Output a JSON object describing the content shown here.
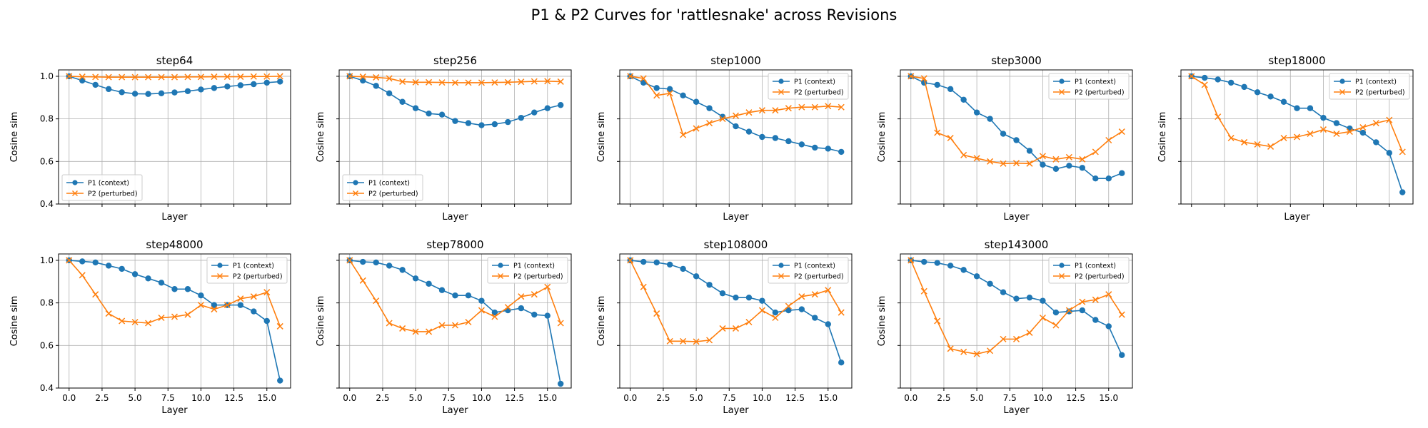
{
  "suptitle": "P1 & P2 Curves for 'rattlesnake' across Revisions",
  "chart_data": {
    "type": "line",
    "layout": "2x5 grid of subplots, shared x and y axes",
    "suptitle": "P1 & P2 Curves for 'rattlesnake' across Revisions",
    "xlabel": "Layer",
    "ylabel": "Cosine sim",
    "xlim": [
      -0.8,
      16.8
    ],
    "ylim": [
      0.4,
      1.03
    ],
    "xticks": [
      0.0,
      2.5,
      5.0,
      7.5,
      10.0,
      12.5,
      15.0
    ],
    "xtick_labels": [
      "0.0",
      "2.5",
      "5.0",
      "7.5",
      "10.0",
      "12.5",
      "15.0"
    ],
    "yticks": [
      0.4,
      0.6,
      0.8,
      1.0
    ],
    "ytick_labels": [
      "0.4",
      "0.6",
      "0.8",
      "1.0"
    ],
    "grid": true,
    "x": [
      0,
      1,
      2,
      3,
      4,
      5,
      6,
      7,
      8,
      9,
      10,
      11,
      12,
      13,
      14,
      15,
      16
    ],
    "series_styles": [
      {
        "name": "P1 (context)",
        "color": "#1f77b4",
        "marker": "circle"
      },
      {
        "name": "P2 (perturbed)",
        "color": "#ff7f0e",
        "marker": "x"
      }
    ],
    "panels": [
      {
        "title": "step64",
        "legend": "lower-left",
        "show_x_ticklabels": false,
        "show_y_ticklabels": true,
        "series": [
          {
            "name": "P1 (context)",
            "values": [
              1.0,
              0.98,
              0.96,
              0.94,
              0.925,
              0.918,
              0.917,
              0.92,
              0.924,
              0.93,
              0.938,
              0.945,
              0.952,
              0.958,
              0.963,
              0.97,
              0.975
            ]
          },
          {
            "name": "P2 (perturbed)",
            "values": [
              1.0,
              0.998,
              0.997,
              0.996,
              0.996,
              0.996,
              0.996,
              0.996,
              0.996,
              0.997,
              0.997,
              0.998,
              0.998,
              0.998,
              0.999,
              0.999,
              1.0
            ]
          }
        ]
      },
      {
        "title": "step256",
        "legend": "lower-left",
        "show_x_ticklabels": false,
        "show_y_ticklabels": false,
        "series": [
          {
            "name": "P1 (context)",
            "values": [
              1.0,
              0.98,
              0.955,
              0.92,
              0.88,
              0.85,
              0.825,
              0.82,
              0.79,
              0.78,
              0.77,
              0.775,
              0.785,
              0.805,
              0.83,
              0.85,
              0.865
            ]
          },
          {
            "name": "P2 (perturbed)",
            "values": [
              1.0,
              0.998,
              0.995,
              0.99,
              0.975,
              0.972,
              0.972,
              0.971,
              0.97,
              0.97,
              0.97,
              0.971,
              0.972,
              0.974,
              0.976,
              0.977,
              0.975
            ]
          }
        ]
      },
      {
        "title": "step1000",
        "legend": "upper-right",
        "show_x_ticklabels": false,
        "show_y_ticklabels": false,
        "series": [
          {
            "name": "P1 (context)",
            "values": [
              1.0,
              0.97,
              0.945,
              0.94,
              0.91,
              0.88,
              0.85,
              0.81,
              0.765,
              0.74,
              0.715,
              0.71,
              0.695,
              0.68,
              0.665,
              0.66,
              0.645
            ]
          },
          {
            "name": "P2 (perturbed)",
            "values": [
              1.0,
              0.99,
              0.91,
              0.92,
              0.725,
              0.755,
              0.78,
              0.8,
              0.815,
              0.83,
              0.84,
              0.84,
              0.85,
              0.855,
              0.855,
              0.86,
              0.855
            ]
          }
        ]
      },
      {
        "title": "step3000",
        "legend": "upper-right",
        "show_x_ticklabels": false,
        "show_y_ticklabels": false,
        "series": [
          {
            "name": "P1 (context)",
            "values": [
              1.0,
              0.97,
              0.96,
              0.94,
              0.89,
              0.83,
              0.8,
              0.73,
              0.7,
              0.65,
              0.585,
              0.565,
              0.58,
              0.57,
              0.52,
              0.52,
              0.545
            ]
          },
          {
            "name": "P2 (perturbed)",
            "values": [
              1.0,
              0.99,
              0.735,
              0.71,
              0.63,
              0.615,
              0.6,
              0.59,
              0.592,
              0.59,
              0.625,
              0.61,
              0.62,
              0.61,
              0.645,
              0.7,
              0.74
            ]
          }
        ]
      },
      {
        "title": "step18000",
        "legend": "upper-right",
        "show_x_ticklabels": false,
        "show_y_ticklabels": false,
        "series": [
          {
            "name": "P1 (context)",
            "values": [
              1.0,
              0.993,
              0.985,
              0.97,
              0.95,
              0.925,
              0.905,
              0.88,
              0.85,
              0.85,
              0.805,
              0.78,
              0.755,
              0.735,
              0.69,
              0.64,
              0.455
            ]
          },
          {
            "name": "P2 (perturbed)",
            "values": [
              1.0,
              0.96,
              0.81,
              0.71,
              0.69,
              0.68,
              0.67,
              0.71,
              0.715,
              0.73,
              0.75,
              0.73,
              0.74,
              0.76,
              0.78,
              0.795,
              0.645
            ]
          }
        ]
      },
      {
        "title": "step48000",
        "legend": "upper-right",
        "show_x_ticklabels": true,
        "show_y_ticklabels": true,
        "series": [
          {
            "name": "P1 (context)",
            "values": [
              1.0,
              0.995,
              0.99,
              0.975,
              0.96,
              0.935,
              0.915,
              0.895,
              0.865,
              0.865,
              0.835,
              0.79,
              0.79,
              0.79,
              0.76,
              0.715,
              0.435
            ]
          },
          {
            "name": "P2 (perturbed)",
            "values": [
              1.0,
              0.93,
              0.84,
              0.75,
              0.715,
              0.71,
              0.705,
              0.73,
              0.735,
              0.745,
              0.79,
              0.77,
              0.79,
              0.82,
              0.83,
              0.85,
              0.69
            ]
          }
        ]
      },
      {
        "title": "step78000",
        "legend": "upper-right",
        "show_x_ticklabels": true,
        "show_y_ticklabels": false,
        "series": [
          {
            "name": "P1 (context)",
            "values": [
              1.0,
              0.993,
              0.99,
              0.975,
              0.955,
              0.915,
              0.89,
              0.86,
              0.835,
              0.835,
              0.81,
              0.755,
              0.765,
              0.775,
              0.745,
              0.74,
              0.42
            ]
          },
          {
            "name": "P2 (perturbed)",
            "values": [
              1.0,
              0.905,
              0.81,
              0.705,
              0.68,
              0.665,
              0.665,
              0.695,
              0.695,
              0.71,
              0.765,
              0.735,
              0.78,
              0.83,
              0.84,
              0.875,
              0.705
            ]
          }
        ]
      },
      {
        "title": "step108000",
        "legend": "upper-right",
        "show_x_ticklabels": true,
        "show_y_ticklabels": false,
        "series": [
          {
            "name": "P1 (context)",
            "values": [
              1.0,
              0.993,
              0.99,
              0.98,
              0.96,
              0.925,
              0.885,
              0.845,
              0.825,
              0.825,
              0.81,
              0.755,
              0.765,
              0.77,
              0.73,
              0.7,
              0.52
            ]
          },
          {
            "name": "P2 (perturbed)",
            "values": [
              1.0,
              0.875,
              0.75,
              0.62,
              0.62,
              0.618,
              0.625,
              0.68,
              0.68,
              0.71,
              0.765,
              0.73,
              0.785,
              0.83,
              0.84,
              0.86,
              0.755
            ]
          }
        ]
      },
      {
        "title": "step143000",
        "legend": "upper-right",
        "show_x_ticklabels": true,
        "show_y_ticklabels": false,
        "series": [
          {
            "name": "P1 (context)",
            "values": [
              1.0,
              0.993,
              0.988,
              0.975,
              0.955,
              0.925,
              0.89,
              0.85,
              0.82,
              0.825,
              0.81,
              0.755,
              0.76,
              0.765,
              0.72,
              0.69,
              0.555
            ]
          },
          {
            "name": "P2 (perturbed)",
            "values": [
              1.0,
              0.855,
              0.715,
              0.585,
              0.57,
              0.56,
              0.575,
              0.63,
              0.63,
              0.66,
              0.73,
              0.695,
              0.765,
              0.805,
              0.815,
              0.84,
              0.745
            ]
          }
        ]
      }
    ]
  }
}
